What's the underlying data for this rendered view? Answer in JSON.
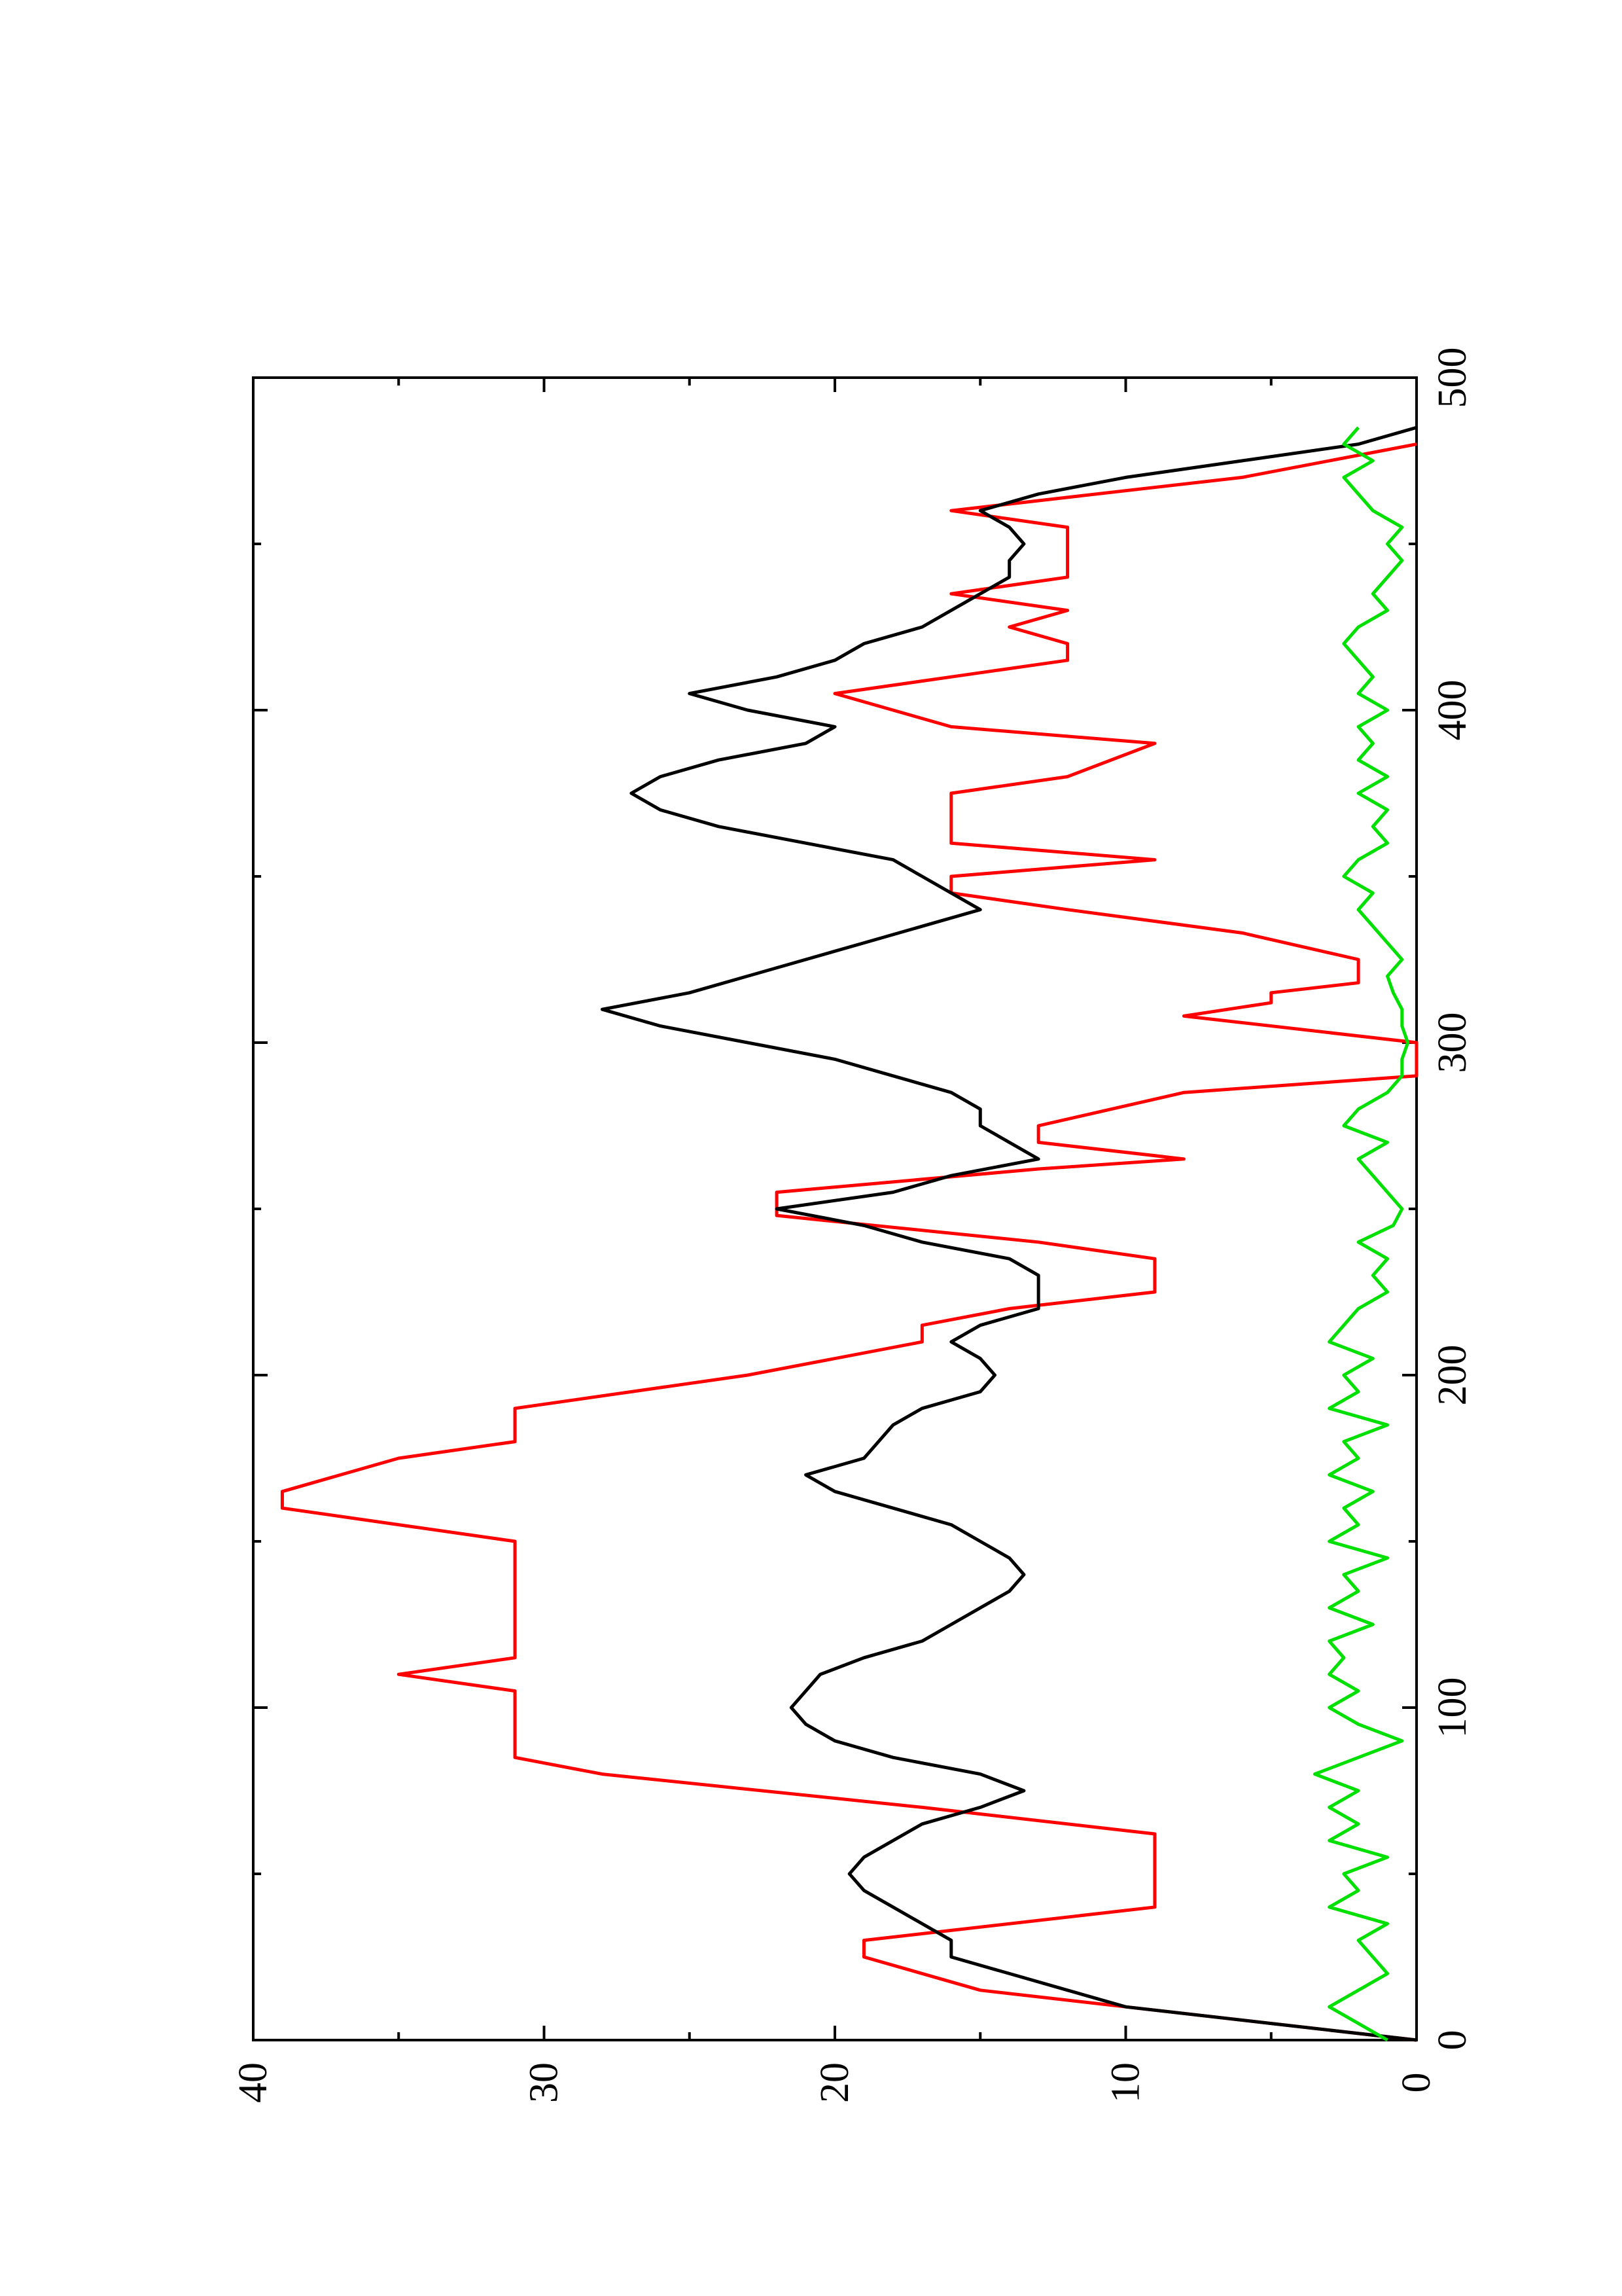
{
  "chart_data": {
    "type": "line",
    "orientation": "rotated-90-ccw",
    "title": "",
    "xlabel": "",
    "ylabel": "",
    "xlim": [
      0,
      500
    ],
    "ylim": [
      0,
      40
    ],
    "x_ticks": [
      "0",
      "100",
      "200",
      "300",
      "400",
      "500"
    ],
    "y_ticks": [
      "0",
      "10",
      "20",
      "30",
      "40"
    ],
    "grid": false,
    "legend": "none",
    "series": [
      {
        "color": "#ff0000",
        "points": [
          [
            0,
            0
          ],
          [
            10,
            10
          ],
          [
            15,
            15
          ],
          [
            25,
            19
          ],
          [
            30,
            19
          ],
          [
            40,
            9
          ],
          [
            55,
            9
          ],
          [
            62,
            9
          ],
          [
            70,
            17
          ],
          [
            80,
            28
          ],
          [
            85,
            31
          ],
          [
            95,
            31
          ],
          [
            105,
            31
          ],
          [
            110,
            35
          ],
          [
            115,
            31
          ],
          [
            125,
            31
          ],
          [
            140,
            31
          ],
          [
            150,
            31
          ],
          [
            155,
            35
          ],
          [
            160,
            39
          ],
          [
            165,
            39
          ],
          [
            175,
            35
          ],
          [
            180,
            31
          ],
          [
            190,
            31
          ],
          [
            200,
            23
          ],
          [
            210,
            17
          ],
          [
            215,
            17
          ],
          [
            220,
            14
          ],
          [
            225,
            9
          ],
          [
            235,
            9
          ],
          [
            240,
            13
          ],
          [
            248,
            22
          ],
          [
            255,
            22
          ],
          [
            262,
            13
          ],
          [
            265,
            8
          ],
          [
            270,
            13
          ],
          [
            275,
            13
          ],
          [
            285,
            8
          ],
          [
            290,
            0
          ],
          [
            295,
            0
          ],
          [
            300,
            0
          ],
          [
            308,
            8
          ],
          [
            312,
            5
          ],
          [
            315,
            5
          ],
          [
            318,
            2
          ],
          [
            325,
            2
          ],
          [
            333,
            6
          ],
          [
            340,
            12
          ],
          [
            345,
            16
          ],
          [
            350,
            16
          ],
          [
            355,
            9
          ],
          [
            360,
            16
          ],
          [
            365,
            16
          ],
          [
            370,
            16
          ],
          [
            375,
            16
          ],
          [
            380,
            12
          ],
          [
            390,
            9
          ],
          [
            395,
            16
          ],
          [
            400,
            18
          ],
          [
            405,
            20
          ],
          [
            410,
            16
          ],
          [
            415,
            12
          ],
          [
            420,
            12
          ],
          [
            425,
            14
          ],
          [
            430,
            12
          ],
          [
            435,
            16
          ],
          [
            440,
            12
          ],
          [
            450,
            12
          ],
          [
            455,
            12
          ],
          [
            460,
            16
          ],
          [
            470,
            6
          ],
          [
            480,
            0
          ]
        ]
      },
      {
        "color": "#000000",
        "points": [
          [
            0,
            0
          ],
          [
            5,
            5
          ],
          [
            10,
            10
          ],
          [
            15,
            12
          ],
          [
            20,
            14
          ],
          [
            25,
            16
          ],
          [
            30,
            16
          ],
          [
            35,
            17
          ],
          [
            40,
            18
          ],
          [
            45,
            19
          ],
          [
            50,
            19.5
          ],
          [
            55,
            19
          ],
          [
            60,
            18
          ],
          [
            65,
            17
          ],
          [
            70,
            15
          ],
          [
            75,
            13.5
          ],
          [
            80,
            15
          ],
          [
            85,
            18
          ],
          [
            90,
            20
          ],
          [
            95,
            21
          ],
          [
            100,
            21.5
          ],
          [
            105,
            21
          ],
          [
            110,
            20.5
          ],
          [
            115,
            19
          ],
          [
            120,
            17
          ],
          [
            125,
            16
          ],
          [
            130,
            15
          ],
          [
            135,
            14
          ],
          [
            140,
            13.5
          ],
          [
            145,
            14
          ],
          [
            150,
            15
          ],
          [
            155,
            16
          ],
          [
            160,
            18
          ],
          [
            165,
            20
          ],
          [
            170,
            21
          ],
          [
            175,
            19
          ],
          [
            180,
            18.5
          ],
          [
            185,
            18
          ],
          [
            190,
            17
          ],
          [
            195,
            15
          ],
          [
            200,
            14.5
          ],
          [
            205,
            15
          ],
          [
            210,
            16
          ],
          [
            215,
            15
          ],
          [
            220,
            13
          ],
          [
            225,
            13
          ],
          [
            230,
            13
          ],
          [
            235,
            14
          ],
          [
            240,
            17
          ],
          [
            245,
            19
          ],
          [
            250,
            22
          ],
          [
            255,
            18
          ],
          [
            260,
            16
          ],
          [
            265,
            13
          ],
          [
            270,
            14
          ],
          [
            275,
            15
          ],
          [
            280,
            15
          ],
          [
            285,
            16
          ],
          [
            290,
            18
          ],
          [
            295,
            20
          ],
          [
            300,
            23
          ],
          [
            305,
            26
          ],
          [
            310,
            28
          ],
          [
            315,
            25
          ],
          [
            320,
            23
          ],
          [
            325,
            21
          ],
          [
            330,
            19
          ],
          [
            335,
            17
          ],
          [
            340,
            15
          ],
          [
            345,
            16
          ],
          [
            350,
            17
          ],
          [
            355,
            18
          ],
          [
            360,
            21
          ],
          [
            365,
            24
          ],
          [
            370,
            26
          ],
          [
            375,
            27
          ],
          [
            380,
            26
          ],
          [
            385,
            24
          ],
          [
            390,
            21
          ],
          [
            395,
            20
          ],
          [
            400,
            23
          ],
          [
            405,
            25
          ],
          [
            410,
            22
          ],
          [
            415,
            20
          ],
          [
            420,
            19
          ],
          [
            425,
            17
          ],
          [
            430,
            16
          ],
          [
            435,
            15
          ],
          [
            440,
            14
          ],
          [
            445,
            14
          ],
          [
            450,
            13.5
          ],
          [
            455,
            14
          ],
          [
            460,
            15
          ],
          [
            465,
            13
          ],
          [
            470,
            10
          ],
          [
            475,
            6
          ],
          [
            480,
            2
          ],
          [
            485,
            0
          ]
        ]
      },
      {
        "color": "#00e000",
        "points": [
          [
            0,
            1
          ],
          [
            5,
            2
          ],
          [
            10,
            3
          ],
          [
            15,
            2
          ],
          [
            20,
            1
          ],
          [
            25,
            1.5
          ],
          [
            30,
            2
          ],
          [
            35,
            1
          ],
          [
            40,
            3
          ],
          [
            45,
            2
          ],
          [
            50,
            2.5
          ],
          [
            55,
            1
          ],
          [
            60,
            3
          ],
          [
            65,
            2
          ],
          [
            70,
            3
          ],
          [
            75,
            2
          ],
          [
            80,
            3.5
          ],
          [
            85,
            2
          ],
          [
            90,
            0.5
          ],
          [
            95,
            2
          ],
          [
            100,
            3
          ],
          [
            105,
            2
          ],
          [
            110,
            3
          ],
          [
            115,
            2.5
          ],
          [
            120,
            3
          ],
          [
            125,
            1.5
          ],
          [
            130,
            3
          ],
          [
            135,
            2
          ],
          [
            140,
            2.5
          ],
          [
            145,
            1
          ],
          [
            150,
            3
          ],
          [
            155,
            2
          ],
          [
            160,
            2.5
          ],
          [
            165,
            1.5
          ],
          [
            170,
            3
          ],
          [
            175,
            2
          ],
          [
            180,
            2.5
          ],
          [
            185,
            1
          ],
          [
            190,
            3
          ],
          [
            195,
            2
          ],
          [
            200,
            2.5
          ],
          [
            205,
            1.5
          ],
          [
            210,
            3
          ],
          [
            215,
            2.5
          ],
          [
            220,
            2
          ],
          [
            225,
            1
          ],
          [
            230,
            1.5
          ],
          [
            235,
            1
          ],
          [
            240,
            2
          ],
          [
            245,
            0.8
          ],
          [
            250,
            0.5
          ],
          [
            255,
            1
          ],
          [
            260,
            1.5
          ],
          [
            265,
            2
          ],
          [
            270,
            1
          ],
          [
            275,
            2.5
          ],
          [
            280,
            2
          ],
          [
            285,
            1
          ],
          [
            290,
            0.5
          ],
          [
            295,
            0.5
          ],
          [
            300,
            0.3
          ],
          [
            305,
            0.5
          ],
          [
            310,
            0.5
          ],
          [
            315,
            0.8
          ],
          [
            320,
            1
          ],
          [
            325,
            0.5
          ],
          [
            330,
            1
          ],
          [
            335,
            1.5
          ],
          [
            340,
            2
          ],
          [
            345,
            1.5
          ],
          [
            350,
            2.5
          ],
          [
            355,
            2
          ],
          [
            360,
            1
          ],
          [
            365,
            1.5
          ],
          [
            370,
            1
          ],
          [
            375,
            2
          ],
          [
            380,
            1
          ],
          [
            385,
            2
          ],
          [
            390,
            1.5
          ],
          [
            395,
            2
          ],
          [
            400,
            1
          ],
          [
            405,
            2
          ],
          [
            410,
            1.5
          ],
          [
            415,
            2
          ],
          [
            420,
            2.5
          ],
          [
            425,
            2
          ],
          [
            430,
            1
          ],
          [
            435,
            1.5
          ],
          [
            440,
            1
          ],
          [
            445,
            0.5
          ],
          [
            450,
            1
          ],
          [
            455,
            0.5
          ],
          [
            460,
            1.5
          ],
          [
            465,
            2
          ],
          [
            470,
            2.5
          ],
          [
            475,
            1.5
          ],
          [
            480,
            2.5
          ],
          [
            485,
            2
          ]
        ]
      }
    ]
  }
}
